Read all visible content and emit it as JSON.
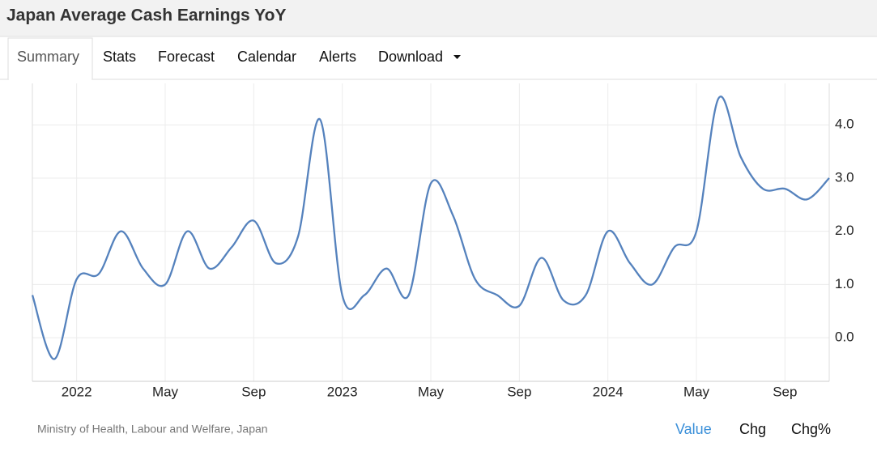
{
  "header": {
    "title": "Japan Average Cash Earnings YoY"
  },
  "tabs": [
    "Summary",
    "Stats",
    "Forecast",
    "Calendar",
    "Alerts",
    "Download"
  ],
  "chart_data": {
    "type": "line",
    "categories": [
      null,
      null,
      "2022",
      null,
      null,
      null,
      "May",
      null,
      null,
      null,
      "Sep",
      null,
      null,
      null,
      "2023",
      null,
      null,
      null,
      "May",
      null,
      null,
      null,
      "Sep",
      null,
      null,
      null,
      "2024",
      null,
      null,
      null,
      "May",
      null,
      null,
      null,
      "Sep",
      null,
      null
    ],
    "series": [
      {
        "name": "Value",
        "color": "#5582bd",
        "values": [
          0.8,
          -0.4,
          1.1,
          1.2,
          2.0,
          1.3,
          1.0,
          2.0,
          1.3,
          1.7,
          2.2,
          1.4,
          1.9,
          4.1,
          0.8,
          0.8,
          1.3,
          0.8,
          2.9,
          2.3,
          1.1,
          0.8,
          0.6,
          1.5,
          0.7,
          0.8,
          2.0,
          1.4,
          1.0,
          1.7,
          2.0,
          4.5,
          3.4,
          2.8,
          2.8,
          2.6,
          3.0
        ]
      }
    ],
    "ylim": [
      -0.82,
      4.78
    ],
    "yticks": [
      {
        "value": 0,
        "label": "0.0"
      },
      {
        "value": 1,
        "label": "1.0"
      },
      {
        "value": 2,
        "label": "2.0"
      },
      {
        "value": 3,
        "label": "3.0"
      },
      {
        "value": 4,
        "label": "4.0"
      }
    ],
    "grid": true,
    "source": "Ministry of Health, Labour and Welfare, Japan"
  },
  "footer": {
    "toggles": [
      "Value",
      "Chg",
      "Chg%"
    ]
  }
}
